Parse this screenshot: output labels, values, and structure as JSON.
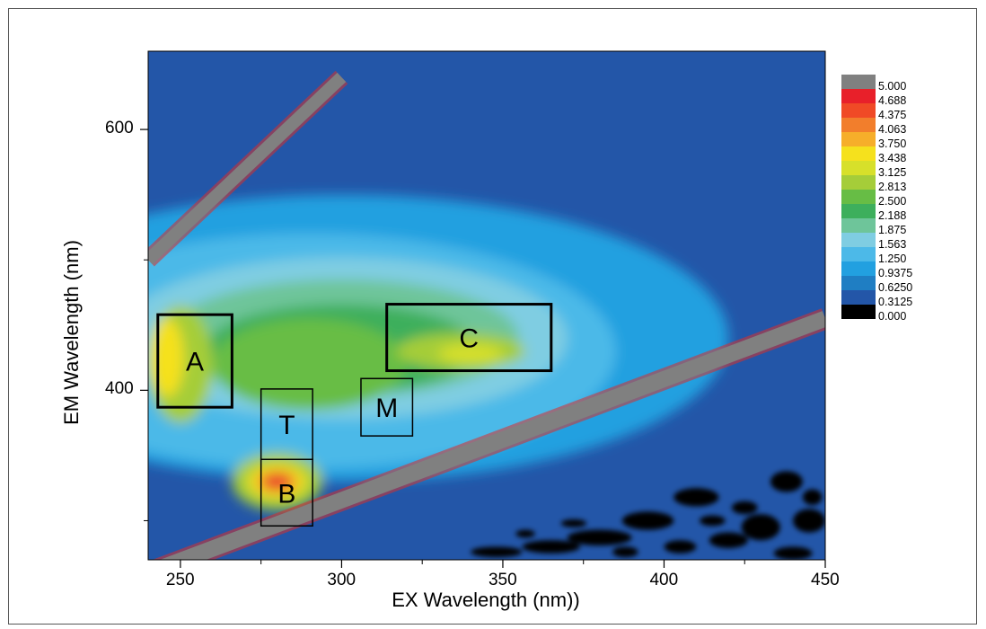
{
  "chart_data": {
    "type": "heatmap",
    "subtype": "excitation-emission-matrix contour",
    "xlabel": "EX Wavelength (nm))",
    "ylabel": "EM Wavelength (nm)",
    "xlim": [
      240,
      450
    ],
    "ylim": [
      270,
      660
    ],
    "xticks": [
      250,
      300,
      350,
      400,
      450
    ],
    "yticks": [
      400,
      600
    ],
    "x_minor_ticks": [
      275,
      325,
      375,
      425
    ],
    "y_minor_ticks": [
      300,
      500
    ],
    "legend_position": "right",
    "legend_levels": [
      "5.000",
      "4.688",
      "4.375",
      "4.063",
      "3.750",
      "3.438",
      "3.125",
      "2.813",
      "2.500",
      "2.188",
      "1.875",
      "1.563",
      "1.250",
      "0.9375",
      "0.6250",
      "0.3125",
      "0.000"
    ],
    "legend_colors": [
      "#808080",
      "#e8202a",
      "#f04a26",
      "#f27e2c",
      "#f6ae2a",
      "#f5e11d",
      "#d7e02a",
      "#a5cd39",
      "#67bd45",
      "#3daf5c",
      "#6ec59a",
      "#7fcde2",
      "#4cb9e8",
      "#22a0e0",
      "#1f7ec3",
      "#2356a8",
      "#000000"
    ],
    "peaks": [
      {
        "label": "A",
        "ex": 253,
        "em": 420,
        "intensity": 3.75
      },
      {
        "label": "T",
        "ex": 280,
        "em": 375,
        "intensity": 2.8
      },
      {
        "label": "B",
        "ex": 280,
        "em": 330,
        "intensity": 4.7
      },
      {
        "label": "M",
        "ex": 313,
        "em": 387,
        "intensity": 2.5
      },
      {
        "label": "C",
        "ex": 340,
        "em": 428,
        "intensity": 3.3
      }
    ],
    "boxes": [
      {
        "label": "A",
        "ex": [
          243,
          266
        ],
        "em": [
          387,
          458
        ],
        "bold": true
      },
      {
        "label": "C",
        "ex": [
          314,
          365
        ],
        "em": [
          415,
          466
        ],
        "bold": true
      },
      {
        "label": "T",
        "ex": [
          275,
          291
        ],
        "em": [
          347,
          401
        ],
        "bold": false
      },
      {
        "label": "B",
        "ex": [
          275,
          291
        ],
        "em": [
          296,
          347
        ],
        "bold": false
      },
      {
        "label": "M",
        "ex": [
          306,
          322
        ],
        "em": [
          365,
          409
        ],
        "bold": false
      }
    ],
    "rayleigh_scatter_lines": [
      "EM = EX",
      "EM = 2·EX"
    ]
  }
}
